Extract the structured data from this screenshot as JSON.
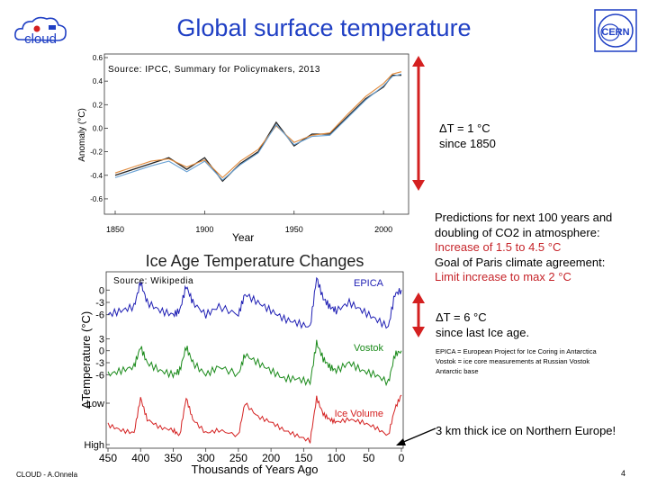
{
  "title": "Global surface temperature",
  "logos": {
    "cloud_text": "cloud",
    "cern_text": "CERN"
  },
  "chart1": {
    "source": "Source: IPCC, Summary for Policymakers, 2013",
    "ylabel": "Anomaly (°C)",
    "xlabel": "Year",
    "y_ticks": [
      "0.6",
      "0.4",
      "0.2",
      "0.0",
      "-0.2",
      "-0.4",
      "-0.6"
    ],
    "x_ticks": [
      "1850",
      "1900",
      "1950",
      "2000"
    ]
  },
  "chart2": {
    "title": "Ice Age Temperature Changes",
    "source": "Source: Wikipedia",
    "ylabel": "ΔTemperature (°C)",
    "xlabel": "Thousands of Years Ago",
    "x_ticks": [
      "450",
      "400",
      "350",
      "300",
      "250",
      "200",
      "150",
      "100",
      "50",
      "0"
    ],
    "y_ticks_epica": [
      "0",
      "-3",
      "-6"
    ],
    "y_ticks_vostok": [
      "3",
      "0",
      "-3",
      "-6"
    ],
    "y_ticks_ice": [
      "Low",
      "High"
    ],
    "labels": {
      "epica": "EPICA",
      "vostok": "Vostok",
      "ice": "Ice Volume"
    }
  },
  "chart_data": [
    {
      "type": "line",
      "title": "",
      "xlabel": "Year",
      "ylabel": "Anomaly (°C)",
      "xlim": [
        1850,
        2012
      ],
      "ylim": [
        -0.7,
        0.6
      ],
      "x": [
        1850,
        1860,
        1870,
        1880,
        1890,
        1900,
        1910,
        1920,
        1930,
        1940,
        1950,
        1960,
        1970,
        1980,
        1990,
        2000,
        2005,
        2010
      ],
      "series": [
        {
          "values": [
            -0.4,
            -0.35,
            -0.3,
            -0.25,
            -0.35,
            -0.25,
            -0.45,
            -0.3,
            -0.2,
            0.05,
            -0.15,
            -0.05,
            -0.05,
            0.1,
            0.25,
            0.35,
            0.45,
            0.45
          ],
          "color": "#222222"
        },
        {
          "values": [
            -0.38,
            -0.33,
            -0.28,
            -0.26,
            -0.33,
            -0.27,
            -0.42,
            -0.28,
            -0.18,
            0.02,
            -0.12,
            -0.06,
            -0.04,
            0.12,
            0.27,
            0.38,
            0.46,
            0.48
          ],
          "color": "#e08a3c"
        },
        {
          "values": [
            -0.42,
            -0.37,
            -0.32,
            -0.28,
            -0.37,
            -0.28,
            -0.44,
            -0.31,
            -0.21,
            0.03,
            -0.14,
            -0.07,
            -0.06,
            0.09,
            0.24,
            0.36,
            0.44,
            0.46
          ],
          "color": "#6aa2d4"
        }
      ]
    },
    {
      "type": "line",
      "title": "Ice Age Temperature Changes",
      "xlabel": "Thousands of Years Ago",
      "ylabel": "ΔTemperature (°C)",
      "xlim": [
        450,
        0
      ],
      "x": [
        450,
        430,
        410,
        400,
        390,
        370,
        350,
        340,
        330,
        320,
        300,
        280,
        250,
        240,
        220,
        200,
        180,
        160,
        140,
        130,
        120,
        110,
        100,
        80,
        60,
        40,
        20,
        10,
        0
      ],
      "series": [
        {
          "name": "EPICA",
          "color": "#1f1fb4",
          "values": [
            -6,
            -5,
            -4,
            2,
            -3,
            -5,
            -6,
            -5,
            1,
            -3,
            -6,
            -4,
            -6,
            -1,
            -3,
            -5,
            -7,
            -8,
            -9,
            3,
            -2,
            -4,
            -5,
            -3,
            -5,
            -7,
            -9,
            -1,
            0
          ]
        },
        {
          "name": "Vostok",
          "color": "#1a8a1a",
          "values": [
            -6,
            -5,
            -4,
            1,
            -3,
            -5,
            -6,
            -5,
            1,
            -3,
            -6,
            -4,
            -6,
            -1,
            -3,
            -5,
            -7,
            -7,
            -8,
            2,
            -2,
            -4,
            -5,
            -3,
            -5,
            -6,
            -8,
            -1,
            0
          ]
        },
        {
          "name": "Ice Volume",
          "color": "#d42020",
          "values": [
            0.4,
            0.3,
            0.25,
            0.9,
            0.5,
            0.35,
            0.3,
            0.2,
            0.9,
            0.5,
            0.25,
            0.3,
            0.2,
            0.8,
            0.55,
            0.45,
            0.3,
            0.2,
            0.1,
            0.9,
            0.6,
            0.5,
            0.45,
            0.5,
            0.45,
            0.35,
            0.2,
            0.7,
            0.95
          ]
        }
      ]
    }
  ],
  "notes": {
    "delta1": [
      "ΔT = 1 °C",
      "since 1850"
    ],
    "pred_black": [
      "Predictions for next 100 years and",
      "doubling of CO2 in atmosphere:"
    ],
    "pred_red1": "Increase of 1.5 to 4.5 °C",
    "pred_black2": "Goal of Paris climate agreement:",
    "pred_red2": "Limit increase to max 2 °C",
    "delta2": [
      "ΔT = 6 °C",
      "since last Ice age."
    ],
    "epica": [
      "EPICA = European Project for Ice Coring in Antarctica",
      "Vostok = ice core measurements at Russian Vostok",
      "Antarctic base"
    ],
    "ice": "3 km thick ice on Northern Europe!"
  },
  "footer": "CLOUD - A.Onnela",
  "page_number": "4",
  "colors": {
    "title": "#1f3fc4",
    "red_arrow": "#d42020",
    "red_text": "#c6242a"
  }
}
